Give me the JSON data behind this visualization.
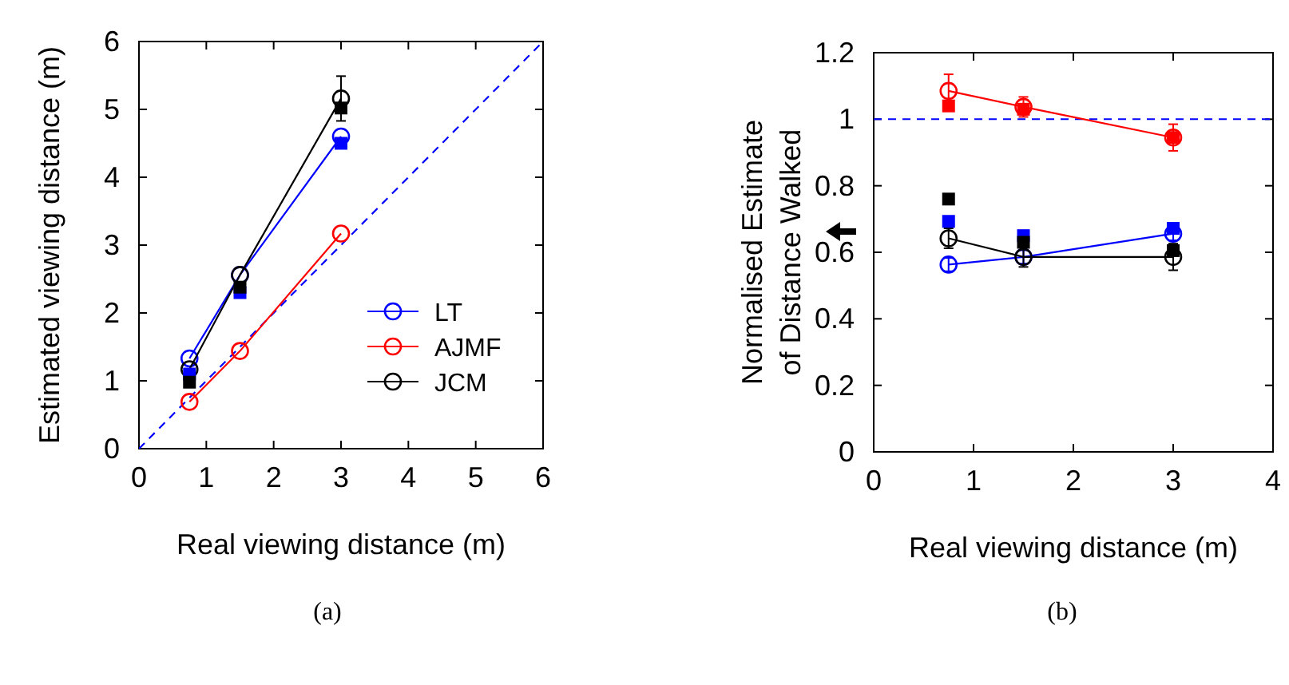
{
  "chart_data": [
    {
      "type": "line",
      "xlabel": "Real viewing distance (m)",
      "ylabel": "Estimated viewing distance (m)",
      "xlim": [
        0,
        6
      ],
      "ylim": [
        0,
        6
      ],
      "xticks": [
        0,
        1,
        2,
        3,
        4,
        5,
        6
      ],
      "yticks": [
        0,
        1,
        2,
        3,
        4,
        5,
        6
      ],
      "grid": false,
      "legend": "bottom right",
      "annotations": [
        "(a)"
      ],
      "series": [
        {
          "type": "line",
          "line_style": "dashed",
          "color": "#0000ff",
          "x": [
            0,
            6
          ],
          "values": [
            0,
            6
          ],
          "marker": "none"
        },
        {
          "type": "line",
          "name": "LT",
          "color": "#0000ff",
          "x": [
            0.75,
            1.5,
            3
          ],
          "values": [
            1.33,
            2.56,
            4.6
          ],
          "marker": "circle"
        },
        {
          "type": "line",
          "name": "AJMF",
          "color": "#ff0000",
          "x": [
            0.75,
            1.5,
            3
          ],
          "values": [
            0.69,
            1.44,
            3.17
          ],
          "marker": "circle"
        },
        {
          "type": "line",
          "name": "JCM",
          "color": "#000000",
          "x": [
            0.75,
            1.5,
            3
          ],
          "values": [
            1.17,
            2.56,
            5.16
          ],
          "errors": [
            null,
            null,
            0.33
          ],
          "marker": "circle"
        },
        {
          "type": "scatter",
          "color": "#0000ff",
          "x": [
            0.75,
            1.5,
            3
          ],
          "values": [
            1.1,
            2.3,
            4.5
          ],
          "marker": "square"
        },
        {
          "type": "scatter",
          "color": "#000000",
          "x": [
            0.75,
            1.5,
            3
          ],
          "values": [
            0.98,
            2.38,
            5.02
          ],
          "marker": "square"
        }
      ]
    },
    {
      "type": "line",
      "xlabel": "Real viewing distance (m)",
      "ylabel": "Normalised Estimate\nof Distance Walked",
      "xlim": [
        0,
        4
      ],
      "ylim": [
        0,
        1.2
      ],
      "xticks": [
        0,
        1,
        2,
        3,
        4
      ],
      "yticks": [
        0,
        0.2,
        0.4,
        0.6,
        0.8,
        1,
        1.2
      ],
      "grid": false,
      "legend": false,
      "annotations": [
        "(b)"
      ],
      "ref_lines": [
        {
          "axis": "y",
          "value": 1,
          "color": "#0000ff",
          "line_style": "dashed"
        }
      ],
      "series": [
        {
          "type": "line",
          "color": "#0000ff",
          "x": [
            0.75,
            1.5,
            3
          ],
          "values": [
            0.563,
            0.586,
            0.656
          ],
          "errors": [
            0.02,
            0.02,
            0.02
          ],
          "marker": "circle"
        },
        {
          "type": "line",
          "color": "#ff0000",
          "x": [
            0.75,
            1.5,
            3
          ],
          "values": [
            1.085,
            1.037,
            0.945
          ],
          "errors": [
            0.05,
            0.03,
            0.04
          ],
          "marker": "circle"
        },
        {
          "type": "line",
          "color": "#000000",
          "x": [
            0.75,
            1.5,
            3
          ],
          "values": [
            0.642,
            0.586,
            0.586
          ],
          "errors": [
            0.03,
            0.03,
            0.04
          ],
          "marker": "circle"
        },
        {
          "type": "scatter",
          "color": "#0000ff",
          "x": [
            0.75,
            1.5,
            3
          ],
          "values": [
            0.693,
            0.65,
            0.672
          ],
          "marker": "square"
        },
        {
          "type": "scatter",
          "color": "#ff0000",
          "x": [
            0.75,
            1.5,
            3
          ],
          "values": [
            1.04,
            1.03,
            0.945
          ],
          "marker": "square"
        },
        {
          "type": "scatter",
          "color": "#000000",
          "x": [
            0.75,
            1.5,
            3
          ],
          "values": [
            0.76,
            0.63,
            0.605
          ],
          "marker": "square"
        }
      ]
    }
  ]
}
